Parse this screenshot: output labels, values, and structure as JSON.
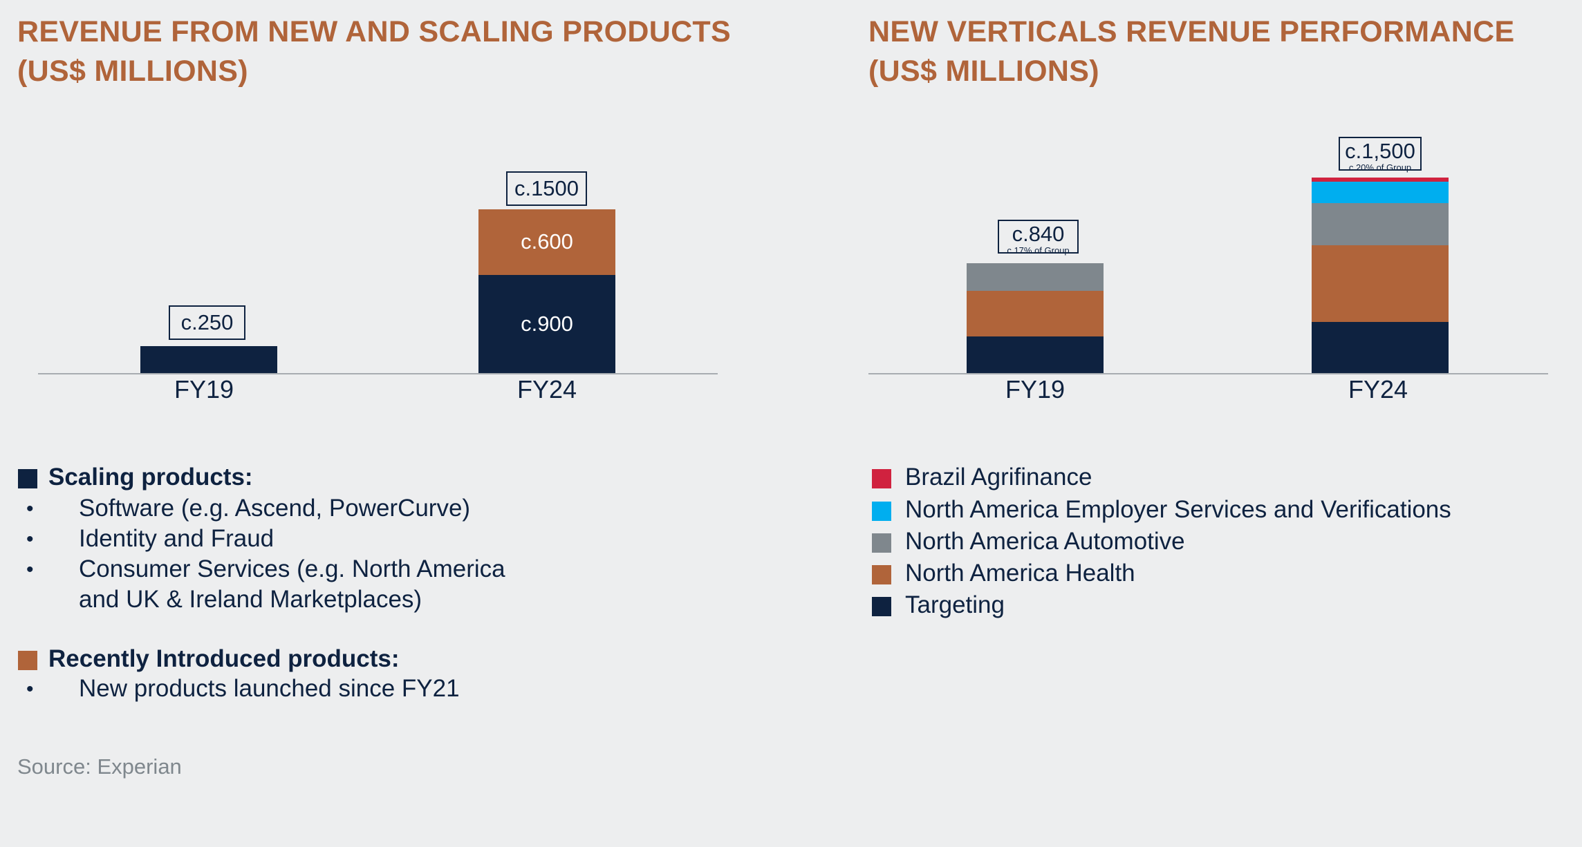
{
  "chart_data": [
    {
      "type": "bar",
      "stacked": true,
      "title": "REVENUE FROM NEW AND SCALING PRODUCTS",
      "title2": "(US$ MILLIONS)",
      "categories": [
        "FY19",
        "FY24"
      ],
      "series": [
        {
          "name": "Scaling products",
          "color": "#0e2240",
          "values": [
            250,
            900
          ],
          "labels": [
            "",
            "c.900"
          ]
        },
        {
          "name": "Recently Introduced products",
          "color": "#b0643a",
          "values": [
            0,
            600
          ],
          "labels": [
            "",
            "c.600"
          ]
        }
      ],
      "totals": [
        "c.250",
        "c.1500"
      ],
      "ylim": [
        0,
        1600
      ]
    },
    {
      "type": "bar",
      "stacked": true,
      "title": "NEW VERTICALS REVENUE PERFORMANCE",
      "title2": "(US$ MILLIONS)",
      "categories": [
        "FY19",
        "FY24"
      ],
      "series": [
        {
          "name": "Targeting",
          "color": "#0e2240",
          "values": [
            280,
            390
          ]
        },
        {
          "name": "North America Health",
          "color": "#b0643a",
          "values": [
            350,
            590
          ]
        },
        {
          "name": "North America Automotive",
          "color": "#7f878d",
          "values": [
            210,
            320
          ]
        },
        {
          "name": "North America Employer Services and Verifications",
          "color": "#00aeef",
          "values": [
            0,
            165
          ]
        },
        {
          "name": "Brazil Agrifinance",
          "color": "#d0223f",
          "values": [
            0,
            35
          ]
        }
      ],
      "totals": [
        "c.840",
        "c.1,500"
      ],
      "total_notes": [
        "c.17% of Group",
        "c.20% of Group"
      ],
      "ylim": [
        0,
        1600
      ]
    }
  ],
  "left_legend": {
    "scaling_heading": "Scaling products:",
    "scaling_items": [
      "Software (e.g. Ascend, PowerCurve)",
      "Identity and Fraud",
      "Consumer Services (e.g. North America",
      "and UK & Ireland Marketplaces)"
    ],
    "recent_heading": "Recently Introduced products:",
    "recent_items": [
      "New products launched since FY21"
    ],
    "bullet": "•"
  },
  "right_legend": [
    "Brazil Agrifinance",
    "North America Employer Services and Verifications",
    "North America Automotive",
    "North America Health",
    "Targeting"
  ],
  "source": "Source: Experian"
}
